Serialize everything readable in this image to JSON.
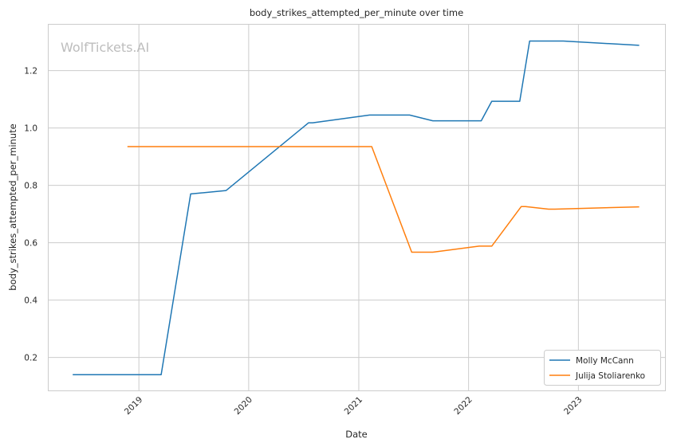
{
  "watermark": "WolfTickets.AI",
  "chart_data": {
    "type": "line",
    "title": "body_strikes_attempted_per_minute over time",
    "xlabel": "Date",
    "ylabel": "body_strikes_attempted_per_minute",
    "x_ticks": [
      "2019",
      "2020",
      "2021",
      "2022",
      "2023"
    ],
    "y_ticks": [
      "0.2",
      "0.4",
      "0.6",
      "0.8",
      "1.0",
      "1.2"
    ],
    "xlim": [
      "2018-03-07",
      "2023-10-16"
    ],
    "ylim": [
      0.085,
      1.36
    ],
    "grid": true,
    "legend_position": "lower-right",
    "series": [
      {
        "name": "Molly McCann",
        "color": "#1f77b4",
        "points": [
          [
            "2018-05-26",
            0.14
          ],
          [
            "2019-03-16",
            0.14
          ],
          [
            "2019-06-22",
            0.77
          ],
          [
            "2019-10-18",
            0.782
          ],
          [
            "2020-07-18",
            1.018
          ],
          [
            "2020-08-01",
            1.018
          ],
          [
            "2021-02-06",
            1.045
          ],
          [
            "2021-06-19",
            1.045
          ],
          [
            "2021-09-04",
            1.025
          ],
          [
            "2022-02-12",
            1.025
          ],
          [
            "2022-03-19",
            1.093
          ],
          [
            "2022-06-20",
            1.093
          ],
          [
            "2022-07-23",
            1.303
          ],
          [
            "2022-11-12",
            1.303
          ],
          [
            "2023-07-22",
            1.288
          ]
        ]
      },
      {
        "name": "Julija Stoliarenko",
        "color": "#ff7f0e",
        "points": [
          [
            "2018-11-24",
            0.935
          ],
          [
            "2021-02-13",
            0.935
          ],
          [
            "2021-06-26",
            0.567
          ],
          [
            "2021-09-04",
            0.567
          ],
          [
            "2022-02-05",
            0.588
          ],
          [
            "2022-03-19",
            0.588
          ],
          [
            "2022-06-25",
            0.726
          ],
          [
            "2022-07-09",
            0.726
          ],
          [
            "2022-09-24",
            0.717
          ],
          [
            "2022-10-15",
            0.717
          ],
          [
            "2023-07-22",
            0.725
          ]
        ]
      }
    ]
  }
}
